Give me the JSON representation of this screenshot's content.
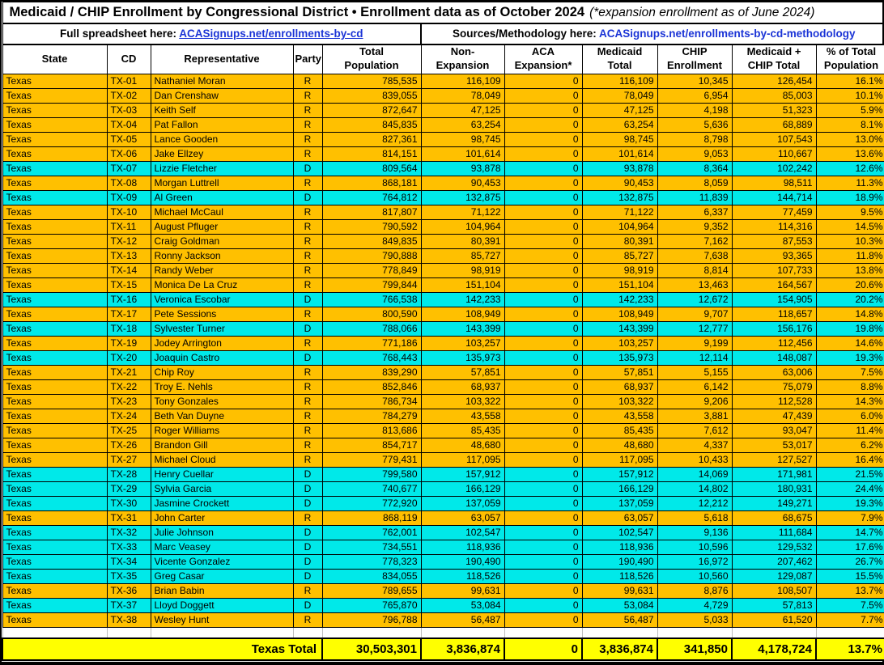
{
  "title": {
    "main": "Medicaid / CHIP Enrollment by Congressional District • Enrollment data as of October 2024",
    "note": "(*expansion enrollment as of June 2024)"
  },
  "links": {
    "left_label": "Full spreadsheet here:",
    "left_link_text": "ACASignups.net/enrollments-by-cd",
    "right_label": "Sources/Methodology here:",
    "right_link_text": "ACASignups.net/enrollments-by-cd-methodology"
  },
  "colors": {
    "republican_row": "#FFC000",
    "democrat_row": "#00E9E9",
    "total_row": "#FFFF00",
    "link_blue": "#1B34D6"
  },
  "table": {
    "columns": [
      "State",
      "CD",
      "Representative",
      "Party",
      "Total\nPopulation",
      "Non-\nExpansion",
      "ACA\nExpansion*",
      "Medicaid\nTotal",
      "CHIP\nEnrollment",
      "Medicaid +\nCHIP Total",
      "% of Total\nPopulation"
    ],
    "rows": [
      [
        "Texas",
        "TX-01",
        "Nathaniel Moran",
        "R",
        "785,535",
        "116,109",
        "0",
        "116,109",
        "10,345",
        "126,454",
        "16.1%"
      ],
      [
        "Texas",
        "TX-02",
        "Dan Crenshaw",
        "R",
        "839,055",
        "78,049",
        "0",
        "78,049",
        "6,954",
        "85,003",
        "10.1%"
      ],
      [
        "Texas",
        "TX-03",
        "Keith Self",
        "R",
        "872,647",
        "47,125",
        "0",
        "47,125",
        "4,198",
        "51,323",
        "5.9%"
      ],
      [
        "Texas",
        "TX-04",
        "Pat Fallon",
        "R",
        "845,835",
        "63,254",
        "0",
        "63,254",
        "5,636",
        "68,889",
        "8.1%"
      ],
      [
        "Texas",
        "TX-05",
        "Lance Gooden",
        "R",
        "827,361",
        "98,745",
        "0",
        "98,745",
        "8,798",
        "107,543",
        "13.0%"
      ],
      [
        "Texas",
        "TX-06",
        "Jake Ellzey",
        "R",
        "814,151",
        "101,614",
        "0",
        "101,614",
        "9,053",
        "110,667",
        "13.6%"
      ],
      [
        "Texas",
        "TX-07",
        "Lizzie Fletcher",
        "D",
        "809,564",
        "93,878",
        "0",
        "93,878",
        "8,364",
        "102,242",
        "12.6%"
      ],
      [
        "Texas",
        "TX-08",
        "Morgan Luttrell",
        "R",
        "868,181",
        "90,453",
        "0",
        "90,453",
        "8,059",
        "98,511",
        "11.3%"
      ],
      [
        "Texas",
        "TX-09",
        "Al Green",
        "D",
        "764,812",
        "132,875",
        "0",
        "132,875",
        "11,839",
        "144,714",
        "18.9%"
      ],
      [
        "Texas",
        "TX-10",
        "Michael McCaul",
        "R",
        "817,807",
        "71,122",
        "0",
        "71,122",
        "6,337",
        "77,459",
        "9.5%"
      ],
      [
        "Texas",
        "TX-11",
        "August Pfluger",
        "R",
        "790,592",
        "104,964",
        "0",
        "104,964",
        "9,352",
        "114,316",
        "14.5%"
      ],
      [
        "Texas",
        "TX-12",
        "Craig Goldman",
        "R",
        "849,835",
        "80,391",
        "0",
        "80,391",
        "7,162",
        "87,553",
        "10.3%"
      ],
      [
        "Texas",
        "TX-13",
        "Ronny Jackson",
        "R",
        "790,888",
        "85,727",
        "0",
        "85,727",
        "7,638",
        "93,365",
        "11.8%"
      ],
      [
        "Texas",
        "TX-14",
        "Randy Weber",
        "R",
        "778,849",
        "98,919",
        "0",
        "98,919",
        "8,814",
        "107,733",
        "13.8%"
      ],
      [
        "Texas",
        "TX-15",
        "Monica De La Cruz",
        "R",
        "799,844",
        "151,104",
        "0",
        "151,104",
        "13,463",
        "164,567",
        "20.6%"
      ],
      [
        "Texas",
        "TX-16",
        "Veronica Escobar",
        "D",
        "766,538",
        "142,233",
        "0",
        "142,233",
        "12,672",
        "154,905",
        "20.2%"
      ],
      [
        "Texas",
        "TX-17",
        "Pete Sessions",
        "R",
        "800,590",
        "108,949",
        "0",
        "108,949",
        "9,707",
        "118,657",
        "14.8%"
      ],
      [
        "Texas",
        "TX-18",
        "Sylvester Turner",
        "D",
        "788,066",
        "143,399",
        "0",
        "143,399",
        "12,777",
        "156,176",
        "19.8%"
      ],
      [
        "Texas",
        "TX-19",
        "Jodey Arrington",
        "R",
        "771,186",
        "103,257",
        "0",
        "103,257",
        "9,199",
        "112,456",
        "14.6%"
      ],
      [
        "Texas",
        "TX-20",
        "Joaquin Castro",
        "D",
        "768,443",
        "135,973",
        "0",
        "135,973",
        "12,114",
        "148,087",
        "19.3%"
      ],
      [
        "Texas",
        "TX-21",
        "Chip Roy",
        "R",
        "839,290",
        "57,851",
        "0",
        "57,851",
        "5,155",
        "63,006",
        "7.5%"
      ],
      [
        "Texas",
        "TX-22",
        "Troy E. Nehls",
        "R",
        "852,846",
        "68,937",
        "0",
        "68,937",
        "6,142",
        "75,079",
        "8.8%"
      ],
      [
        "Texas",
        "TX-23",
        "Tony Gonzales",
        "R",
        "786,734",
        "103,322",
        "0",
        "103,322",
        "9,206",
        "112,528",
        "14.3%"
      ],
      [
        "Texas",
        "TX-24",
        "Beth Van Duyne",
        "R",
        "784,279",
        "43,558",
        "0",
        "43,558",
        "3,881",
        "47,439",
        "6.0%"
      ],
      [
        "Texas",
        "TX-25",
        "Roger Williams",
        "R",
        "813,686",
        "85,435",
        "0",
        "85,435",
        "7,612",
        "93,047",
        "11.4%"
      ],
      [
        "Texas",
        "TX-26",
        "Brandon Gill",
        "R",
        "854,717",
        "48,680",
        "0",
        "48,680",
        "4,337",
        "53,017",
        "6.2%"
      ],
      [
        "Texas",
        "TX-27",
        "Michael Cloud",
        "R",
        "779,431",
        "117,095",
        "0",
        "117,095",
        "10,433",
        "127,527",
        "16.4%"
      ],
      [
        "Texas",
        "TX-28",
        "Henry Cuellar",
        "D",
        "799,580",
        "157,912",
        "0",
        "157,912",
        "14,069",
        "171,981",
        "21.5%"
      ],
      [
        "Texas",
        "TX-29",
        "Sylvia Garcia",
        "D",
        "740,677",
        "166,129",
        "0",
        "166,129",
        "14,802",
        "180,931",
        "24.4%"
      ],
      [
        "Texas",
        "TX-30",
        "Jasmine Crockett",
        "D",
        "772,920",
        "137,059",
        "0",
        "137,059",
        "12,212",
        "149,271",
        "19.3%"
      ],
      [
        "Texas",
        "TX-31",
        "John Carter",
        "R",
        "868,119",
        "63,057",
        "0",
        "63,057",
        "5,618",
        "68,675",
        "7.9%"
      ],
      [
        "Texas",
        "TX-32",
        "Julie Johnson",
        "D",
        "762,001",
        "102,547",
        "0",
        "102,547",
        "9,136",
        "111,684",
        "14.7%"
      ],
      [
        "Texas",
        "TX-33",
        "Marc Veasey",
        "D",
        "734,551",
        "118,936",
        "0",
        "118,936",
        "10,596",
        "129,532",
        "17.6%"
      ],
      [
        "Texas",
        "TX-34",
        "Vicente Gonzalez",
        "D",
        "778,323",
        "190,490",
        "0",
        "190,490",
        "16,972",
        "207,462",
        "26.7%"
      ],
      [
        "Texas",
        "TX-35",
        "Greg Casar",
        "D",
        "834,055",
        "118,526",
        "0",
        "118,526",
        "10,560",
        "129,087",
        "15.5%"
      ],
      [
        "Texas",
        "TX-36",
        "Brian Babin",
        "R",
        "789,655",
        "99,631",
        "0",
        "99,631",
        "8,876",
        "108,507",
        "13.7%"
      ],
      [
        "Texas",
        "TX-37",
        "Lloyd Doggett",
        "D",
        "765,870",
        "53,084",
        "0",
        "53,084",
        "4,729",
        "57,813",
        "7.5%"
      ],
      [
        "Texas",
        "TX-38",
        "Wesley Hunt",
        "R",
        "796,788",
        "56,487",
        "0",
        "56,487",
        "5,033",
        "61,520",
        "7.7%"
      ]
    ],
    "total": {
      "label": "Texas Total",
      "values": [
        "30,503,301",
        "3,836,874",
        "0",
        "3,836,874",
        "341,850",
        "4,178,724",
        "13.7%"
      ]
    }
  }
}
